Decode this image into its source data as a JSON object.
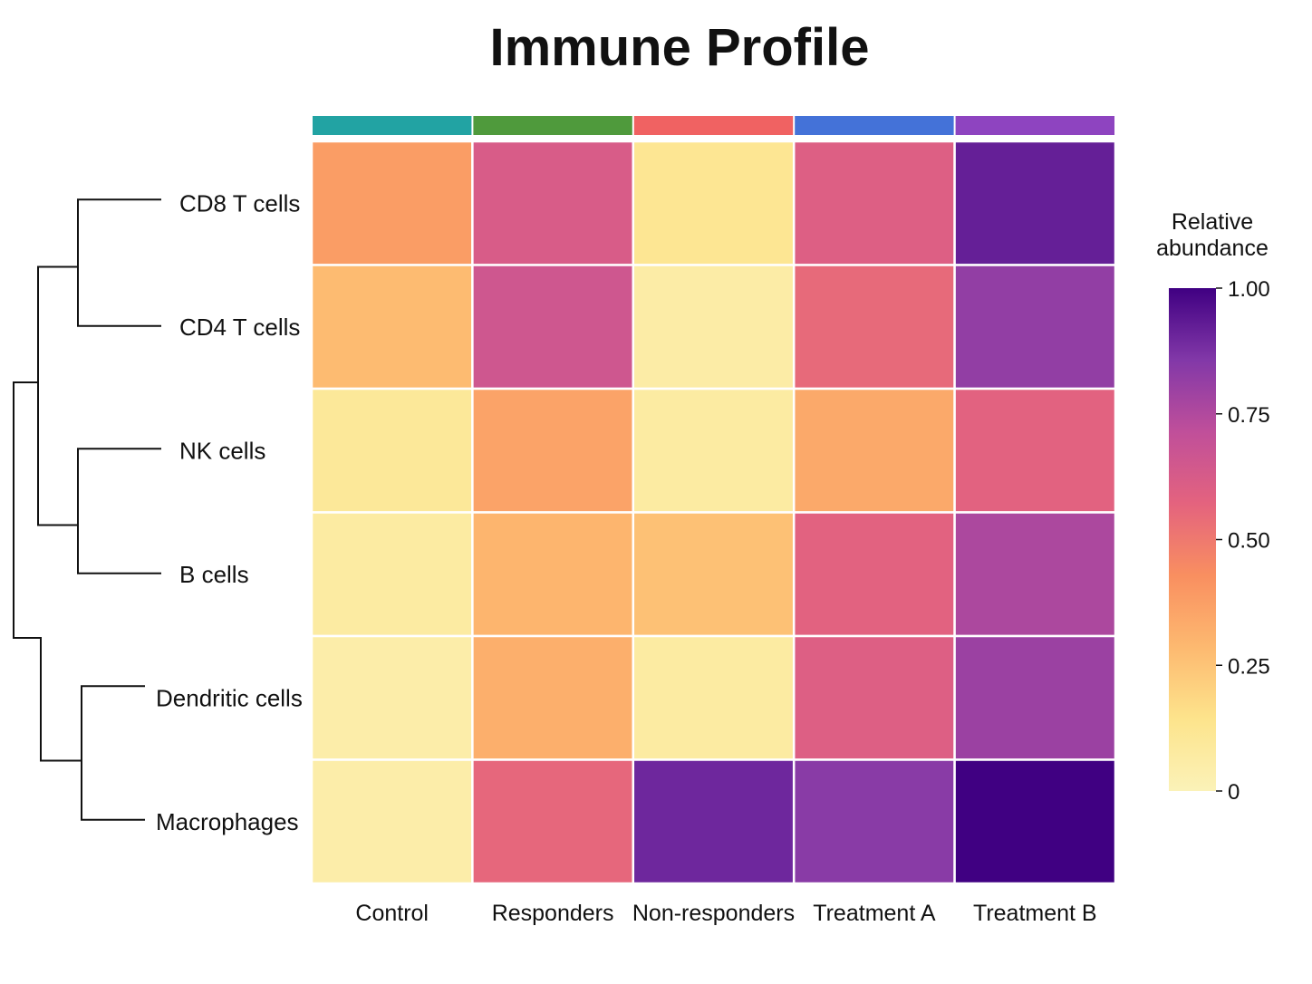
{
  "chart_data": {
    "type": "heatmap",
    "title": "Immune Profile",
    "rows": [
      "CD8 T cells",
      "CD4 T cells",
      "NK cells",
      "B cells",
      "Dendritic cells",
      "Macrophages"
    ],
    "columns": [
      "Control",
      "Responders",
      "Non-responders",
      "Treatment A",
      "Treatment B"
    ],
    "column_colors": [
      "#22a3a3",
      "#4f9a3c",
      "#f06262",
      "#4472d8",
      "#8e44c0"
    ],
    "values": [
      [
        0.38,
        0.62,
        0.12,
        0.6,
        0.92
      ],
      [
        0.28,
        0.66,
        0.06,
        0.55,
        0.82
      ],
      [
        0.1,
        0.36,
        0.07,
        0.34,
        0.58
      ],
      [
        0.07,
        0.3,
        0.26,
        0.58,
        0.76
      ],
      [
        0.05,
        0.32,
        0.07,
        0.6,
        0.8
      ],
      [
        0.05,
        0.56,
        0.9,
        0.84,
        1.0
      ]
    ],
    "legend": {
      "title_lines": [
        "Relative",
        "abundance"
      ],
      "min": 0,
      "max": 1,
      "ticks": [
        0,
        0.25,
        0.5,
        0.75,
        1.0
      ],
      "tick_labels": [
        "0",
        "0.25",
        "0.50",
        "0.75",
        "1.00"
      ],
      "placement": "right"
    },
    "dendrogram": "rows",
    "colormap": [
      "#fbf2b8",
      "#fde48c",
      "#fdb970",
      "#f98f60",
      "#e4637e",
      "#c04f9a",
      "#8238a8",
      "#400082"
    ]
  }
}
